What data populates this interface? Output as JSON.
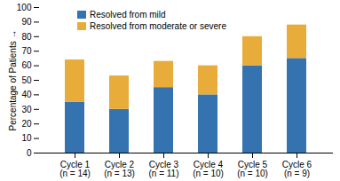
{
  "chart_data": {
    "type": "bar",
    "stacked": true,
    "categories": [
      "Cycle 1\n(n = 14)",
      "Cycle 2\n(n = 13)",
      "Cycle 3\n(n = 11)",
      "Cycle 4\n(n = 10)",
      "Cycle 5\n(n = 10)",
      "Cycle 6\n(n = 9)"
    ],
    "series": [
      {
        "name": "Resolved from mild",
        "color": "#3472B0",
        "values": [
          35,
          30,
          45,
          40,
          60,
          65
        ]
      },
      {
        "name": "Resolved from moderate or severe",
        "color": "#E8AC3A",
        "values": [
          29,
          23,
          18,
          20,
          20,
          23
        ]
      }
    ],
    "ylabel": "Percentage of Patients",
    "ylim": [
      0,
      100
    ],
    "yticks": [
      0,
      10,
      20,
      30,
      40,
      50,
      60,
      70,
      80,
      90,
      100
    ],
    "grid": false,
    "legend": "upper left"
  }
}
